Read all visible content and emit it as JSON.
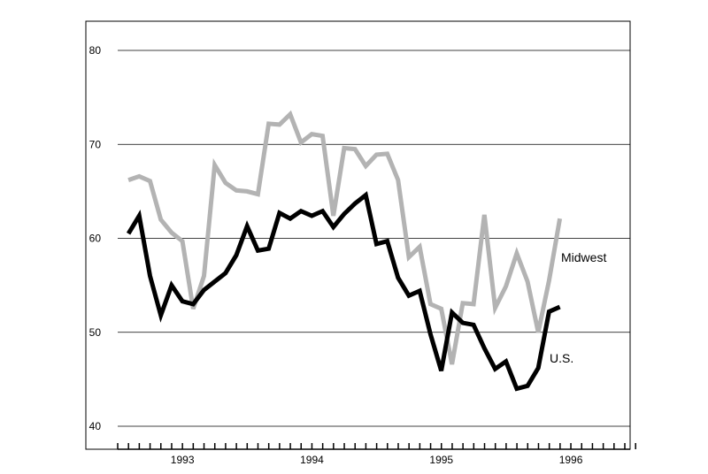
{
  "chart_data": {
    "type": "line",
    "title": "",
    "xlabel": "",
    "ylabel": "",
    "ylim": [
      40,
      80
    ],
    "yticks": [
      40,
      50,
      60,
      70,
      80
    ],
    "ytick_labels": [
      "40",
      "50",
      "60",
      "70",
      "80"
    ],
    "xlim": [
      1992.5,
      1996.5
    ],
    "x_year_labels": [
      {
        "label": "1993",
        "x": 1993.0
      },
      {
        "label": "1994",
        "x": 1994.0
      },
      {
        "label": "1995",
        "x": 1995.0
      },
      {
        "label": "1996",
        "x": 1996.0
      }
    ],
    "x_start": 1992.583,
    "x_step": 0.0833,
    "grid": true,
    "series": [
      {
        "name": "Midwest",
        "color": "#b3b3b3",
        "values": [
          66.2,
          66.6,
          66.1,
          62.0,
          60.6,
          59.7,
          52.5,
          56.0,
          67.8,
          65.9,
          65.1,
          65.0,
          64.7,
          72.2,
          72.1,
          73.2,
          70.2,
          71.1,
          70.9,
          62.4,
          69.6,
          69.5,
          67.7,
          68.9,
          69.0,
          66.2,
          58.0,
          59.1,
          53.0,
          52.5,
          46.6,
          53.1,
          53.0,
          62.5,
          52.6,
          54.9,
          58.4,
          55.4,
          50.0,
          55.5,
          62.1
        ]
      },
      {
        "name": "U.S.",
        "color": "#000000",
        "values": [
          60.5,
          62.4,
          56.0,
          51.8,
          55.0,
          53.3,
          53.0,
          54.5,
          55.4,
          56.3,
          58.2,
          61.3,
          58.7,
          58.9,
          62.7,
          62.1,
          62.9,
          62.4,
          62.9,
          61.2,
          62.6,
          63.7,
          64.6,
          59.4,
          59.7,
          55.8,
          53.9,
          54.4,
          49.8,
          45.9,
          52.1,
          51.0,
          50.8,
          48.3,
          46.1,
          46.9,
          44.0,
          44.3,
          46.2,
          52.2,
          52.7
        ]
      }
    ],
    "annotations": [
      {
        "text": "Midwest",
        "series": "Midwest"
      },
      {
        "text": "U.S.",
        "series": "U.S."
      }
    ]
  }
}
